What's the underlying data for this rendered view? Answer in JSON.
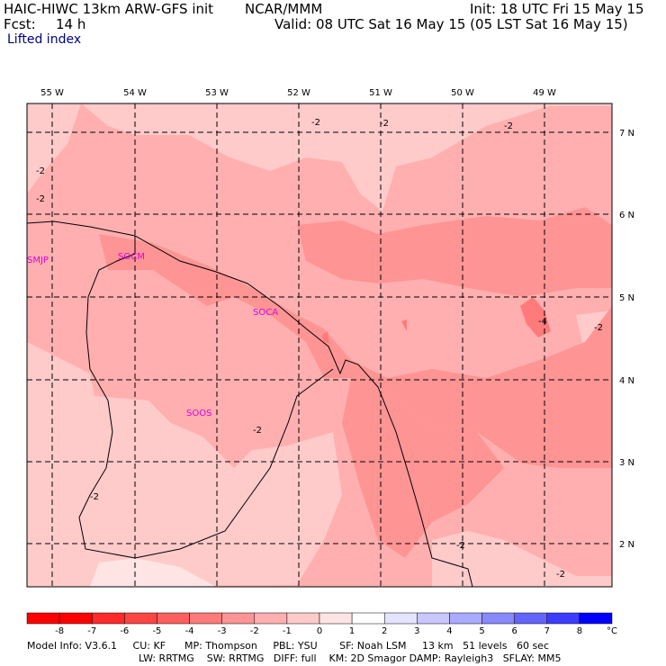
{
  "header": {
    "model": "HAIC-HIWC 13km ARW-GFS init",
    "org": "NCAR/MMM",
    "init": "Init: 18 UTC Fri 15 May 15",
    "fcst_label": "Fcst:",
    "fcst_value": "14 h",
    "valid": "Valid: 08 UTC Sat 16 May 15 (05 LST Sat 16 May 15)",
    "field": "Lifted index"
  },
  "map": {
    "lon_labels": [
      "55 W",
      "54 W",
      "53 W",
      "52 W",
      "51 W",
      "50 W",
      "49 W"
    ],
    "lat_labels": [
      "7 N",
      "6 N",
      "5 N",
      "4 N",
      "3 N",
      "2 N"
    ],
    "stations": [
      "SMJP",
      "SOCM",
      "SOCA",
      "SOOS"
    ],
    "contour_labels": [
      "-2",
      "-2",
      "-2",
      "-2",
      "-2",
      "-4",
      "-2",
      "-2",
      "-2",
      "-2",
      "-2",
      "-2"
    ]
  },
  "legend": {
    "ticks": [
      "-8",
      "-7",
      "-6",
      "-5",
      "-4",
      "-3",
      "-2",
      "-1",
      "0",
      "1",
      "2",
      "3",
      "4",
      "5",
      "6",
      "7",
      "8"
    ],
    "unit": "°C",
    "colors": [
      "#ff0000",
      "#ff2a2a",
      "#ff4444",
      "#ff5f5f",
      "#ff7a7a",
      "#ff9494",
      "#ffafaf",
      "#ffcaca",
      "#ffe4e4",
      "#ffffff",
      "#e4e4ff",
      "#c8c8ff",
      "#aaaaff",
      "#8888ff",
      "#6464ff",
      "#3c3cff",
      "#0000ff"
    ]
  },
  "footer": {
    "line1": "Model Info: V3.6.1     CU: KF      MP: Thompson     PBL: YSU       SF: Noah LSM     13 km   51 levels   60 sec",
    "line2": "LW: RRTMG    SW: RRTMG   DIFF: full    KM: 2D Smagor DAMP: Rayleigh3   SFLAY: MM5"
  }
}
